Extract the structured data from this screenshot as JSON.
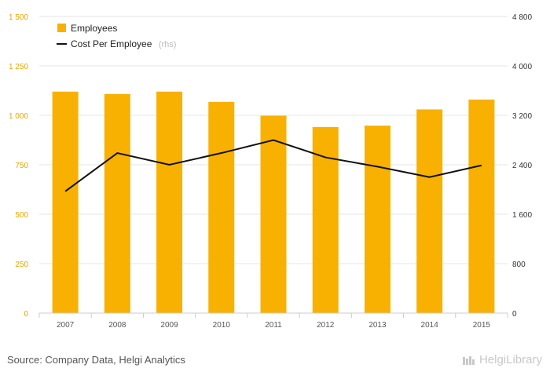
{
  "chart_data": {
    "type": "bar+line",
    "categories": [
      "2007",
      "2008",
      "2009",
      "2010",
      "2011",
      "2012",
      "2013",
      "2014",
      "2015"
    ],
    "series": [
      {
        "name": "Employees",
        "type": "bar",
        "axis": "left",
        "values": [
          1120,
          1108,
          1120,
          1068,
          998,
          941,
          948,
          1030,
          1080
        ]
      },
      {
        "name": "Cost Per Employee",
        "legend_suffix": "(rhs)",
        "type": "line",
        "axis": "right",
        "values": [
          1970,
          2590,
          2400,
          2590,
          2800,
          2520,
          2370,
          2200,
          2390
        ]
      }
    ],
    "left_axis": {
      "ylim": [
        0,
        1500
      ],
      "ticks": [
        "0",
        "250",
        "500",
        "750",
        "1 000",
        "1 250",
        "1 500"
      ]
    },
    "right_axis": {
      "ylim": [
        0,
        4800
      ],
      "ticks": [
        "0",
        "800",
        "1 600",
        "2 400",
        "3 200",
        "4 000",
        "4 800"
      ]
    },
    "grid": true,
    "legend": "top-left",
    "colors": {
      "bar": "#f8b100",
      "line": "#111111",
      "left_axis_text": "#f0a500"
    }
  },
  "footer": {
    "source": "Source: Company Data, Helgi Analytics",
    "brand": "HelgiLibrary"
  }
}
